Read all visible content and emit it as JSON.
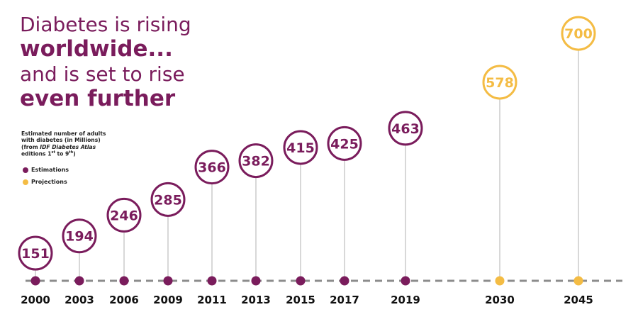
{
  "headline": {
    "line1": "Diabetes is rising",
    "line2": "worldwide...",
    "line3": "and is set to rise",
    "line4": "even further"
  },
  "note": {
    "line1": "Estimated number of adults",
    "line2": "with diabetes (in Millions)",
    "line3_pre": "(from ",
    "line3_italic": "IDF Diabetes Atlas",
    "line4_a": "editions 1",
    "line4_sup1": "st",
    "line4_b": " to 9",
    "line4_sup2": "th",
    "line4_c": ")"
  },
  "legend": {
    "estimations": "Estimations",
    "projections": "Projections"
  },
  "colors": {
    "estimation": "#7a1c5c",
    "projection": "#f4bc44",
    "baseline": "#8c8c8c",
    "stem": "#b0b0b0"
  },
  "chart_data": {
    "type": "line",
    "title": "Diabetes is rising worldwide... and is set to rise even further",
    "ylabel": "Estimated number of adults with diabetes (in Millions)",
    "categories": [
      "2000",
      "2003",
      "2006",
      "2009",
      "2011",
      "2013",
      "2015",
      "2017",
      "2019",
      "2030",
      "2045"
    ],
    "values": [
      151,
      194,
      246,
      285,
      366,
      382,
      415,
      425,
      463,
      578,
      700
    ],
    "kind": [
      "Estimations",
      "Estimations",
      "Estimations",
      "Estimations",
      "Estimations",
      "Estimations",
      "Estimations",
      "Estimations",
      "Estimations",
      "Projections",
      "Projections"
    ],
    "grid": false
  }
}
